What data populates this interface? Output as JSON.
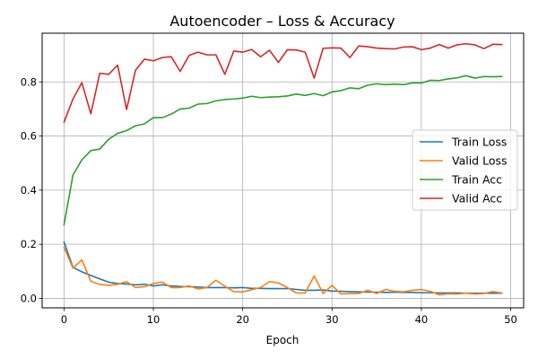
{
  "chart_data": {
    "type": "line",
    "title": "Autoencoder – Loss & Accuracy",
    "xlabel": "Epoch",
    "ylabel": "",
    "xlim": [
      -2.45,
      51.45
    ],
    "ylim": [
      -0.035,
      0.98
    ],
    "xticks": [
      0,
      10,
      20,
      30,
      40,
      50
    ],
    "yticks": [
      0.0,
      0.2,
      0.4,
      0.6,
      0.8
    ],
    "grid": true,
    "legend_position": "center-right",
    "x": [
      0,
      1,
      2,
      3,
      4,
      5,
      6,
      7,
      8,
      9,
      10,
      11,
      12,
      13,
      14,
      15,
      16,
      17,
      18,
      19,
      20,
      21,
      22,
      23,
      24,
      25,
      26,
      27,
      28,
      29,
      30,
      31,
      32,
      33,
      34,
      35,
      36,
      37,
      38,
      39,
      40,
      41,
      42,
      43,
      44,
      45,
      46,
      47,
      48,
      49
    ],
    "series": [
      {
        "name": "Train Loss",
        "color": "#1f77b4",
        "values": [
          0.208,
          0.115,
          0.098,
          0.085,
          0.072,
          0.06,
          0.055,
          0.053,
          0.05,
          0.052,
          0.046,
          0.05,
          0.046,
          0.044,
          0.043,
          0.042,
          0.04,
          0.04,
          0.04,
          0.039,
          0.04,
          0.037,
          0.037,
          0.036,
          0.036,
          0.036,
          0.033,
          0.03,
          0.03,
          0.031,
          0.027,
          0.026,
          0.025,
          0.024,
          0.023,
          0.023,
          0.022,
          0.023,
          0.022,
          0.022,
          0.021,
          0.021,
          0.02,
          0.02,
          0.02,
          0.019,
          0.019,
          0.019,
          0.019,
          0.019
        ]
      },
      {
        "name": "Valid Loss",
        "color": "#ff7f0e",
        "values": [
          0.188,
          0.112,
          0.142,
          0.063,
          0.052,
          0.048,
          0.052,
          0.062,
          0.04,
          0.043,
          0.055,
          0.06,
          0.04,
          0.04,
          0.046,
          0.035,
          0.04,
          0.067,
          0.045,
          0.025,
          0.024,
          0.032,
          0.04,
          0.062,
          0.057,
          0.04,
          0.02,
          0.02,
          0.083,
          0.018,
          0.048,
          0.016,
          0.018,
          0.018,
          0.03,
          0.018,
          0.033,
          0.026,
          0.024,
          0.03,
          0.033,
          0.026,
          0.013,
          0.017,
          0.016,
          0.019,
          0.016,
          0.018,
          0.025,
          0.02
        ]
      },
      {
        "name": "Train Acc",
        "color": "#2ca02c",
        "values": [
          0.272,
          0.456,
          0.512,
          0.546,
          0.552,
          0.588,
          0.61,
          0.62,
          0.638,
          0.645,
          0.668,
          0.668,
          0.681,
          0.7,
          0.703,
          0.718,
          0.72,
          0.73,
          0.735,
          0.737,
          0.74,
          0.747,
          0.742,
          0.744,
          0.745,
          0.748,
          0.755,
          0.75,
          0.757,
          0.749,
          0.763,
          0.768,
          0.778,
          0.775,
          0.788,
          0.793,
          0.79,
          0.792,
          0.79,
          0.796,
          0.796,
          0.806,
          0.805,
          0.811,
          0.815,
          0.823,
          0.814,
          0.82,
          0.819,
          0.82
        ]
      },
      {
        "name": "Valid Acc",
        "color": "#d62728",
        "values": [
          0.651,
          0.737,
          0.797,
          0.682,
          0.832,
          0.828,
          0.862,
          0.698,
          0.843,
          0.884,
          0.878,
          0.89,
          0.893,
          0.839,
          0.898,
          0.91,
          0.9,
          0.9,
          0.828,
          0.914,
          0.91,
          0.92,
          0.893,
          0.917,
          0.872,
          0.919,
          0.918,
          0.91,
          0.814,
          0.924,
          0.926,
          0.925,
          0.89,
          0.933,
          0.93,
          0.925,
          0.923,
          0.922,
          0.929,
          0.93,
          0.919,
          0.925,
          0.938,
          0.925,
          0.937,
          0.941,
          0.937,
          0.923,
          0.939,
          0.938
        ]
      }
    ]
  }
}
